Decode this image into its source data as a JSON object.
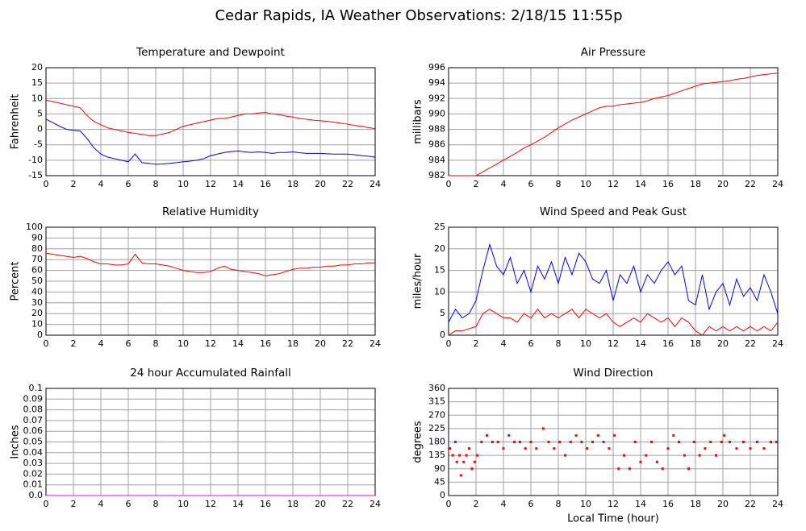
{
  "title": "Cedar Rapids, IA Weather Observations: 2/18/15 11:55p",
  "chart_data": [
    {
      "type": "line",
      "title": "Temperature and Dewpoint",
      "ylabel": "Fahrenheit",
      "x": [
        0,
        0.5,
        1,
        1.5,
        2,
        2.5,
        3,
        3.5,
        4,
        4.5,
        5,
        5.5,
        6,
        6.5,
        7,
        7.5,
        8,
        8.5,
        9,
        9.5,
        10,
        10.5,
        11,
        11.5,
        12,
        12.5,
        13,
        13.5,
        14,
        14.5,
        15,
        15.5,
        16,
        16.5,
        17,
        17.5,
        18,
        18.5,
        19,
        19.5,
        20,
        20.5,
        21,
        21.5,
        22,
        22.5,
        23,
        23.5,
        24
      ],
      "series": [
        {
          "color": "#ff0000",
          "values": [
            9.5,
            9,
            8.5,
            8,
            7.5,
            7,
            4.5,
            2.5,
            1.5,
            0.5,
            0,
            -0.5,
            -1,
            -1.3,
            -1.6,
            -2,
            -2,
            -1.5,
            -1,
            0,
            1,
            1.5,
            2,
            2.5,
            3,
            3.5,
            3.5,
            4,
            4.5,
            5,
            5,
            5.3,
            5.5,
            5,
            4.8,
            4.3,
            4,
            3.5,
            3.3,
            3,
            2.8,
            2.6,
            2.3,
            2,
            1.7,
            1.3,
            1,
            0.6,
            0.2
          ]
        },
        {
          "color": "#0000ff",
          "values": [
            3.3,
            2.2,
            1,
            0,
            -0.3,
            -0.5,
            -3,
            -6,
            -8,
            -9,
            -9.5,
            -10,
            -10.5,
            -8,
            -10.8,
            -11,
            -11.3,
            -11.2,
            -11,
            -10.8,
            -10.5,
            -10.3,
            -10,
            -9.5,
            -8.5,
            -8,
            -7.5,
            -7.2,
            -7,
            -7.3,
            -7.5,
            -7.3,
            -7.5,
            -7.8,
            -7.5,
            -7.5,
            -7.3,
            -7.6,
            -7.8,
            -7.8,
            -7.8,
            -7.9,
            -8,
            -8,
            -8,
            -8.2,
            -8.5,
            -8.7,
            -9
          ]
        }
      ],
      "xlim": [
        0,
        24
      ],
      "xticks": [
        0,
        2,
        4,
        6,
        8,
        10,
        12,
        14,
        16,
        18,
        20,
        22,
        24
      ],
      "ylim": [
        -15,
        20
      ],
      "yticks": [
        -15,
        -10,
        -5,
        0,
        5,
        10,
        15,
        20
      ],
      "grid": true
    },
    {
      "type": "line",
      "title": "Air Pressure",
      "ylabel": "millibars",
      "x": [
        0,
        0.5,
        1,
        1.5,
        2,
        2.5,
        3,
        3.5,
        4,
        4.5,
        5,
        5.5,
        6,
        6.5,
        7,
        7.5,
        8,
        8.5,
        9,
        9.5,
        10,
        10.5,
        11,
        11.5,
        12,
        12.5,
        13,
        13.5,
        14,
        14.5,
        15,
        15.5,
        16,
        16.5,
        17,
        17.5,
        18,
        18.5,
        19,
        19.5,
        20,
        20.5,
        21,
        21.5,
        22,
        22.5,
        23,
        23.5,
        24
      ],
      "series": [
        {
          "color": "#ff0000",
          "values": [
            982,
            982,
            982,
            982,
            982,
            982.5,
            983,
            983.5,
            984,
            984.5,
            985,
            985.6,
            986,
            986.5,
            987,
            987.6,
            988.2,
            988.7,
            989.2,
            989.6,
            990,
            990.4,
            990.8,
            991,
            991,
            991.2,
            991.3,
            991.4,
            991.5,
            991.7,
            992,
            992.2,
            992.4,
            992.7,
            993,
            993.3,
            993.6,
            993.9,
            994,
            994.1,
            994.2,
            994.3,
            994.5,
            994.6,
            994.8,
            995,
            995.1,
            995.2,
            995.3
          ]
        }
      ],
      "xlim": [
        0,
        24
      ],
      "xticks": [
        0,
        2,
        4,
        6,
        8,
        10,
        12,
        14,
        16,
        18,
        20,
        22,
        24
      ],
      "ylim": [
        982,
        996
      ],
      "yticks": [
        982,
        984,
        986,
        988,
        990,
        992,
        994,
        996
      ],
      "grid": true
    },
    {
      "type": "line",
      "title": "Relative Humidity",
      "ylabel": "Percent",
      "x": [
        0,
        0.5,
        1,
        1.5,
        2,
        2.5,
        3,
        3.5,
        4,
        4.5,
        5,
        5.5,
        6,
        6.5,
        7,
        7.5,
        8,
        8.5,
        9,
        9.5,
        10,
        10.5,
        11,
        11.5,
        12,
        12.5,
        13,
        13.5,
        14,
        14.5,
        15,
        15.5,
        16,
        16.5,
        17,
        17.5,
        18,
        18.5,
        19,
        19.5,
        20,
        20.5,
        21,
        21.5,
        22,
        22.5,
        23,
        23.5,
        24
      ],
      "series": [
        {
          "color": "#ff0000",
          "values": [
            76,
            75,
            74,
            73,
            72,
            73,
            71,
            68,
            66,
            66,
            65,
            65,
            66,
            75,
            67,
            66,
            66,
            65,
            64,
            62,
            60,
            59,
            58,
            58,
            59,
            62,
            64,
            61,
            60,
            59,
            58,
            57,
            55,
            56,
            57,
            59,
            61,
            62,
            62,
            63,
            63,
            64,
            64,
            65,
            65,
            66,
            66,
            67,
            67
          ]
        }
      ],
      "xlim": [
        0,
        24
      ],
      "xticks": [
        0,
        2,
        4,
        6,
        8,
        10,
        12,
        14,
        16,
        18,
        20,
        22,
        24
      ],
      "ylim": [
        0,
        100
      ],
      "yticks": [
        0,
        10,
        20,
        30,
        40,
        50,
        60,
        70,
        80,
        90,
        100
      ],
      "grid": true
    },
    {
      "type": "line",
      "title": "Wind Speed and Peak Gust",
      "ylabel": "miles/hour",
      "x": [
        0,
        0.5,
        1,
        1.5,
        2,
        2.5,
        3,
        3.5,
        4,
        4.5,
        5,
        5.5,
        6,
        6.5,
        7,
        7.5,
        8,
        8.5,
        9,
        9.5,
        10,
        10.5,
        11,
        11.5,
        12,
        12.5,
        13,
        13.5,
        14,
        14.5,
        15,
        15.5,
        16,
        16.5,
        17,
        17.5,
        18,
        18.5,
        19,
        19.5,
        20,
        20.5,
        21,
        21.5,
        22,
        22.5,
        23,
        23.5,
        24
      ],
      "series": [
        {
          "color": "#0000ff",
          "values": [
            3,
            6,
            4,
            5,
            8,
            15,
            21,
            16,
            14,
            18,
            12,
            15,
            10,
            16,
            13,
            17,
            12,
            18,
            14,
            19,
            17,
            13,
            12,
            15,
            8,
            14,
            12,
            16,
            10,
            14,
            12,
            15,
            17,
            14,
            16,
            8,
            7,
            14,
            6,
            10,
            12,
            7,
            13,
            9,
            11,
            8,
            14,
            10,
            5
          ]
        },
        {
          "color": "#ff0000",
          "values": [
            0,
            1,
            1,
            1.5,
            2,
            5,
            6,
            5,
            4,
            4,
            3,
            5,
            4,
            6,
            4,
            5,
            4,
            5,
            6,
            4,
            6,
            5,
            4,
            5,
            3,
            2,
            3,
            4,
            3,
            5,
            4,
            3,
            4,
            2,
            4,
            3,
            1,
            0,
            2,
            1,
            2,
            1,
            2,
            1,
            2,
            1,
            2,
            1,
            3
          ]
        }
      ],
      "xlim": [
        0,
        24
      ],
      "xticks": [
        0,
        2,
        4,
        6,
        8,
        10,
        12,
        14,
        16,
        18,
        20,
        22,
        24
      ],
      "ylim": [
        0,
        25
      ],
      "yticks": [
        0,
        5,
        10,
        15,
        20,
        25
      ],
      "grid": true
    },
    {
      "type": "line",
      "title": "24 hour Accumulated Rainfall",
      "ylabel": "Inches",
      "x": [
        0,
        24
      ],
      "series": [
        {
          "color": "#ff00ff",
          "values": [
            0,
            0
          ]
        }
      ],
      "xlim": [
        0,
        24
      ],
      "xticks": [
        0,
        2,
        4,
        6,
        8,
        10,
        12,
        14,
        16,
        18,
        20,
        22,
        24
      ],
      "ylim": [
        0,
        0.1
      ],
      "yticks": [
        {
          "value": 0,
          "label": "0.0"
        },
        0.01,
        0.02,
        0.03,
        0.04,
        0.05,
        0.06,
        0.07,
        0.08,
        0.09,
        0.1
      ],
      "grid": true
    },
    {
      "type": "scatter",
      "title": "Wind Direction",
      "ylabel": "degrees",
      "xlabel": "Local Time (hour)",
      "x": [
        0.1,
        0.3,
        0.5,
        0.6,
        0.8,
        0.9,
        1.1,
        1.3,
        1.5,
        1.7,
        1.9,
        2.1,
        2.4,
        2.8,
        3.2,
        3.6,
        4,
        4.4,
        4.8,
        5.2,
        5.6,
        6,
        6.4,
        6.9,
        7.3,
        7.7,
        8.1,
        8.5,
        8.9,
        9.3,
        9.7,
        10.1,
        10.5,
        10.9,
        11.3,
        11.7,
        12.1,
        12.4,
        12.8,
        13.2,
        13.6,
        14,
        14.4,
        14.8,
        15.2,
        15.6,
        16,
        16.4,
        16.8,
        17.2,
        17.5,
        17.9,
        18.3,
        18.7,
        19.1,
        19.5,
        19.9,
        20.1,
        20.5,
        21,
        21.5,
        22,
        22.5,
        23,
        23.5,
        23.9
      ],
      "series": [
        {
          "color": "#ff0000",
          "values": [
            158,
            135,
            180,
            113,
            135,
            68,
            113,
            135,
            158,
            90,
            113,
            135,
            180,
            202,
            180,
            180,
            158,
            202,
            180,
            180,
            158,
            180,
            158,
            225,
            180,
            158,
            180,
            135,
            180,
            202,
            180,
            158,
            180,
            202,
            180,
            158,
            202,
            90,
            135,
            90,
            180,
            113,
            135,
            180,
            113,
            90,
            158,
            202,
            180,
            135,
            90,
            180,
            135,
            158,
            180,
            135,
            180,
            202,
            180,
            158,
            180,
            158,
            180,
            158,
            180,
            180
          ]
        }
      ],
      "xlim": [
        0,
        24
      ],
      "xticks": [
        0,
        2,
        4,
        6,
        8,
        10,
        12,
        14,
        16,
        18,
        20,
        22,
        24
      ],
      "ylim": [
        0,
        360
      ],
      "yticks": [
        0,
        45,
        90,
        135,
        180,
        225,
        270,
        315,
        360
      ],
      "grid": true
    }
  ]
}
